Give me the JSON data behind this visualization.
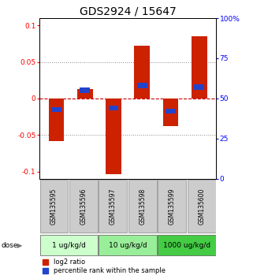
{
  "title": "GDS2924 / 15647",
  "samples": [
    "GSM135595",
    "GSM135596",
    "GSM135597",
    "GSM135598",
    "GSM135599",
    "GSM135600"
  ],
  "log2_ratios": [
    -0.058,
    0.013,
    -0.104,
    0.072,
    -0.038,
    0.085
  ],
  "percentile_ranks": [
    43,
    55,
    44,
    58,
    42,
    57
  ],
  "dose_groups": [
    {
      "label": "1 ug/kg/d",
      "samples": [
        0,
        1
      ],
      "color": "#ccffcc"
    },
    {
      "label": "10 ug/kg/d",
      "samples": [
        2,
        3
      ],
      "color": "#99ee99"
    },
    {
      "label": "1000 ug/kg/d",
      "samples": [
        4,
        5
      ],
      "color": "#44cc44"
    }
  ],
  "bar_color_red": "#cc2200",
  "bar_color_blue": "#2244cc",
  "bar_width": 0.55,
  "ylim_left": [
    -0.11,
    0.11
  ],
  "ylim_right": [
    0,
    100
  ],
  "yticks_left": [
    -0.1,
    -0.05,
    0.0,
    0.05,
    0.1
  ],
  "yticks_right": [
    0,
    25,
    50,
    75,
    100
  ],
  "ytick_labels_left": [
    "-0.1",
    "-0.05",
    "0",
    "0.05",
    "0.1"
  ],
  "ytick_labels_right": [
    "0",
    "25",
    "50",
    "75",
    "100%"
  ],
  "hlines": [
    -0.05,
    0.0,
    0.05
  ],
  "dose_label": "dose",
  "legend_red": "log2 ratio",
  "legend_blue": "percentile rank within the sample",
  "sample_box_color": "#cccccc",
  "background_color": "#ffffff",
  "title_fontsize": 10,
  "tick_fontsize": 6.5,
  "sample_fontsize": 5.5,
  "dose_fontsize": 6.5,
  "legend_fontsize": 6
}
